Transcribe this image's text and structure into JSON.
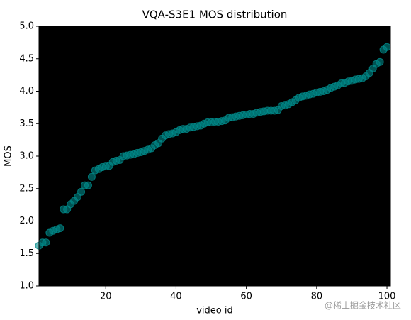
{
  "chart_data": {
    "type": "scatter",
    "title": "VQA-S3E1 MOS distribution",
    "xlabel": "video id",
    "ylabel": "MOS",
    "watermark": "@稀土掘金技术社区",
    "color": "#008b8b",
    "background": "#000000",
    "x": [
      1,
      2,
      3,
      4,
      5,
      6,
      7,
      8,
      9,
      10,
      11,
      12,
      13,
      14,
      15,
      16,
      17,
      18,
      19,
      20,
      21,
      22,
      23,
      24,
      25,
      26,
      27,
      28,
      29,
      30,
      31,
      32,
      33,
      34,
      35,
      36,
      37,
      38,
      39,
      40,
      41,
      42,
      43,
      44,
      45,
      46,
      47,
      48,
      49,
      50,
      51,
      52,
      53,
      54,
      55,
      56,
      57,
      58,
      59,
      60,
      61,
      62,
      63,
      64,
      65,
      66,
      67,
      68,
      69,
      70,
      71,
      72,
      73,
      74,
      75,
      76,
      77,
      78,
      79,
      80,
      81,
      82,
      83,
      84,
      85,
      86,
      87,
      88,
      89,
      90,
      91,
      92,
      93,
      94,
      95,
      96,
      97,
      98,
      99,
      100
    ],
    "values": [
      1.62,
      1.67,
      1.67,
      1.82,
      1.85,
      1.87,
      1.89,
      2.18,
      2.18,
      2.26,
      2.31,
      2.37,
      2.45,
      2.55,
      2.55,
      2.68,
      2.78,
      2.8,
      2.83,
      2.84,
      2.85,
      2.91,
      2.93,
      2.94,
      3.0,
      3.01,
      3.02,
      3.03,
      3.05,
      3.06,
      3.08,
      3.1,
      3.12,
      3.17,
      3.2,
      3.27,
      3.32,
      3.34,
      3.35,
      3.37,
      3.4,
      3.42,
      3.42,
      3.44,
      3.45,
      3.46,
      3.47,
      3.5,
      3.52,
      3.52,
      3.53,
      3.53,
      3.54,
      3.55,
      3.59,
      3.6,
      3.61,
      3.62,
      3.63,
      3.64,
      3.65,
      3.65,
      3.67,
      3.68,
      3.69,
      3.7,
      3.7,
      3.7,
      3.71,
      3.77,
      3.78,
      3.8,
      3.83,
      3.86,
      3.9,
      3.92,
      3.93,
      3.95,
      3.96,
      3.98,
      3.99,
      4.0,
      4.02,
      4.05,
      4.07,
      4.09,
      4.12,
      4.13,
      4.15,
      4.16,
      4.18,
      4.19,
      4.2,
      4.23,
      4.28,
      4.35,
      4.42,
      4.45,
      4.64,
      4.68
    ],
    "xlim": [
      1,
      101
    ],
    "xticks": [
      20,
      40,
      60,
      80,
      100
    ],
    "ylim": [
      1,
      5
    ],
    "yticks": [
      {
        "value": 1,
        "label": "1.0"
      },
      {
        "value": 1.5,
        "label": "1.5"
      },
      {
        "value": 2,
        "label": "2.0"
      },
      {
        "value": 2.5,
        "label": "2.5"
      },
      {
        "value": 3,
        "label": "3.0"
      },
      {
        "value": 3.5,
        "label": "3.5"
      },
      {
        "value": 4,
        "label": "4.0"
      },
      {
        "value": 4.5,
        "label": "4.5"
      },
      {
        "value": 5,
        "label": "5.0"
      }
    ]
  }
}
